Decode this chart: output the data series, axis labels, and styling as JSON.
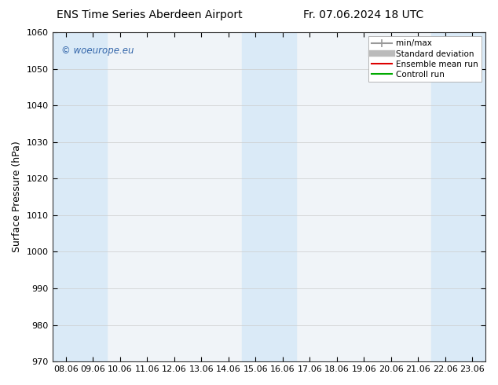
{
  "title": "ENS Time Series Aberdeen Airport",
  "title_right": "Fr. 07.06.2024 18 UTC",
  "ylabel": "Surface Pressure (hPa)",
  "ylim": [
    970,
    1060
  ],
  "yticks": [
    970,
    980,
    990,
    1000,
    1010,
    1020,
    1030,
    1040,
    1050,
    1060
  ],
  "x_labels": [
    "08.06",
    "09.06",
    "10.06",
    "11.06",
    "12.06",
    "13.06",
    "14.06",
    "15.06",
    "16.06",
    "17.06",
    "18.06",
    "19.06",
    "20.06",
    "21.06",
    "22.06",
    "23.06"
  ],
  "shaded_indices": [
    0,
    1,
    7,
    8,
    14,
    15
  ],
  "shaded_color": "#daeaf7",
  "plot_bg_color": "#f0f4f8",
  "watermark": "© woeurope.eu",
  "watermark_color": "#3366aa",
  "legend_items": [
    {
      "label": "min/max",
      "color": "#999999",
      "lw": 1.5
    },
    {
      "label": "Standard deviation",
      "color": "#bbbbbb",
      "lw": 6
    },
    {
      "label": "Ensemble mean run",
      "color": "#dd0000",
      "lw": 1.5
    },
    {
      "label": "Controll run",
      "color": "#00aa00",
      "lw": 1.5
    }
  ],
  "background_color": "#ffffff",
  "title_fontsize": 10,
  "ylabel_fontsize": 9,
  "tick_fontsize": 8,
  "legend_fontsize": 7.5
}
